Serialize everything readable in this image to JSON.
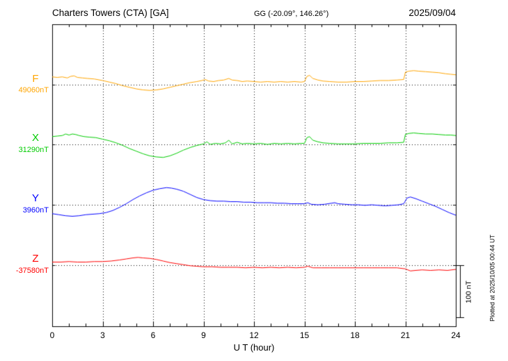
{
  "header": {
    "title": "Charters Towers (CTA)  [GA]",
    "coordinates": "GG (-20.09°, 146.26°)",
    "date": "2025/09/04"
  },
  "chart_data": {
    "type": "line",
    "title": "Charters Towers (CTA)  [GA]",
    "station_code": "CTA",
    "xlabel": "U T (hour)",
    "x_range": [
      0,
      24
    ],
    "x_major_ticks": [
      "0",
      "3",
      "6",
      "9",
      "12",
      "15",
      "18",
      "21",
      "24"
    ],
    "x_minor_tick_step_hours": 1,
    "grid": "dotted vertical lines every 3 hours, dotted horizontal line at each channel baseline",
    "legend_position": "left margin channel labels",
    "scale_bar": {
      "label": "100 nT",
      "nT": 100
    },
    "plotted_at": "Plotted at 2025/10/05 00:44 UT",
    "series": [
      {
        "name": "F",
        "baseline_label": "49060nT",
        "baseline_nT": 49060,
        "color": "#FFA500",
        "points_t_offset_nT": [
          [
            0,
            15
          ],
          [
            0.3,
            14
          ],
          [
            0.6,
            15
          ],
          [
            0.9,
            13
          ],
          [
            1.1,
            16
          ],
          [
            1.3,
            17
          ],
          [
            1.5,
            14
          ],
          [
            1.8,
            13
          ],
          [
            2.1,
            12
          ],
          [
            2.5,
            11
          ],
          [
            3.0,
            8
          ],
          [
            3.4,
            5
          ],
          [
            3.8,
            2
          ],
          [
            4.2,
            -2
          ],
          [
            4.6,
            -5
          ],
          [
            5.0,
            -8
          ],
          [
            5.4,
            -10
          ],
          [
            5.8,
            -11
          ],
          [
            6.2,
            -10
          ],
          [
            6.6,
            -8
          ],
          [
            7.0,
            -5
          ],
          [
            7.4,
            -2
          ],
          [
            7.8,
            1
          ],
          [
            8.2,
            4
          ],
          [
            8.6,
            6
          ],
          [
            8.9,
            8
          ],
          [
            9.1,
            10
          ],
          [
            9.3,
            7
          ],
          [
            9.6,
            6
          ],
          [
            9.9,
            8
          ],
          [
            10.2,
            9
          ],
          [
            10.5,
            12
          ],
          [
            10.7,
            9
          ],
          [
            11.0,
            8
          ],
          [
            11.3,
            6
          ],
          [
            11.6,
            7
          ],
          [
            12.0,
            6
          ],
          [
            12.4,
            5
          ],
          [
            12.8,
            6
          ],
          [
            13.2,
            5
          ],
          [
            13.6,
            6
          ],
          [
            14.0,
            5
          ],
          [
            14.4,
            6
          ],
          [
            14.8,
            5
          ],
          [
            15.0,
            6
          ],
          [
            15.15,
            16
          ],
          [
            15.3,
            18
          ],
          [
            15.5,
            12
          ],
          [
            15.8,
            9
          ],
          [
            16.1,
            7
          ],
          [
            16.5,
            6
          ],
          [
            17.0,
            5
          ],
          [
            17.5,
            5
          ],
          [
            18.0,
            6
          ],
          [
            18.5,
            6
          ],
          [
            19.0,
            7
          ],
          [
            19.5,
            8
          ],
          [
            20.0,
            8
          ],
          [
            20.5,
            9
          ],
          [
            20.9,
            10
          ],
          [
            21.0,
            24
          ],
          [
            21.2,
            26
          ],
          [
            21.5,
            27
          ],
          [
            21.8,
            26
          ],
          [
            22.2,
            25
          ],
          [
            22.6,
            24
          ],
          [
            23.0,
            23
          ],
          [
            23.4,
            21
          ],
          [
            23.7,
            20
          ],
          [
            24,
            19
          ]
        ]
      },
      {
        "name": "X",
        "baseline_label": "31290nT",
        "baseline_nT": 31290,
        "color": "#00CC00",
        "points_t_offset_nT": [
          [
            0,
            15
          ],
          [
            0.3,
            16
          ],
          [
            0.6,
            17
          ],
          [
            0.8,
            20
          ],
          [
            1.0,
            18
          ],
          [
            1.2,
            20
          ],
          [
            1.4,
            19
          ],
          [
            1.6,
            17
          ],
          [
            1.9,
            15
          ],
          [
            2.2,
            14
          ],
          [
            2.6,
            13
          ],
          [
            3.0,
            10
          ],
          [
            3.4,
            7
          ],
          [
            3.8,
            3
          ],
          [
            4.2,
            -2
          ],
          [
            4.6,
            -8
          ],
          [
            5.0,
            -13
          ],
          [
            5.4,
            -18
          ],
          [
            5.8,
            -22
          ],
          [
            6.2,
            -24
          ],
          [
            6.6,
            -25
          ],
          [
            7.0,
            -22
          ],
          [
            7.4,
            -17
          ],
          [
            7.8,
            -11
          ],
          [
            8.2,
            -6
          ],
          [
            8.6,
            -2
          ],
          [
            9.0,
            1
          ],
          [
            9.2,
            5
          ],
          [
            9.4,
            0
          ],
          [
            9.7,
            2
          ],
          [
            10.0,
            1
          ],
          [
            10.3,
            3
          ],
          [
            10.5,
            8
          ],
          [
            10.7,
            1
          ],
          [
            11.0,
            4
          ],
          [
            11.3,
            1
          ],
          [
            11.6,
            2
          ],
          [
            12.0,
            1
          ],
          [
            12.4,
            2
          ],
          [
            12.8,
            0
          ],
          [
            13.2,
            2
          ],
          [
            13.6,
            1
          ],
          [
            14.0,
            2
          ],
          [
            14.4,
            1
          ],
          [
            14.8,
            2
          ],
          [
            15.0,
            2
          ],
          [
            15.15,
            13
          ],
          [
            15.3,
            15
          ],
          [
            15.5,
            8
          ],
          [
            15.8,
            5
          ],
          [
            16.1,
            3
          ],
          [
            16.5,
            2
          ],
          [
            17.0,
            1
          ],
          [
            17.5,
            1
          ],
          [
            18.0,
            1
          ],
          [
            18.5,
            2
          ],
          [
            19.0,
            2
          ],
          [
            19.5,
            2
          ],
          [
            20.0,
            3
          ],
          [
            20.5,
            3
          ],
          [
            20.9,
            4
          ],
          [
            21.0,
            19
          ],
          [
            21.2,
            21
          ],
          [
            21.5,
            22
          ],
          [
            21.8,
            21
          ],
          [
            22.2,
            20
          ],
          [
            22.6,
            20
          ],
          [
            23.0,
            19
          ],
          [
            23.4,
            18
          ],
          [
            23.7,
            18
          ],
          [
            24,
            17
          ]
        ]
      },
      {
        "name": "Y",
        "baseline_label": "3960nT",
        "baseline_nT": 3960,
        "color": "#0000FF",
        "points_t_offset_nT": [
          [
            0,
            -17
          ],
          [
            0.4,
            -19
          ],
          [
            0.8,
            -21
          ],
          [
            1.2,
            -22
          ],
          [
            1.6,
            -21
          ],
          [
            2.0,
            -19
          ],
          [
            2.4,
            -18
          ],
          [
            2.8,
            -17
          ],
          [
            3.2,
            -15
          ],
          [
            3.6,
            -11
          ],
          [
            4.0,
            -5
          ],
          [
            4.4,
            2
          ],
          [
            4.8,
            10
          ],
          [
            5.2,
            17
          ],
          [
            5.6,
            23
          ],
          [
            6.0,
            28
          ],
          [
            6.4,
            31
          ],
          [
            6.8,
            33
          ],
          [
            7.1,
            32
          ],
          [
            7.4,
            30
          ],
          [
            7.8,
            26
          ],
          [
            8.2,
            20
          ],
          [
            8.6,
            14
          ],
          [
            9.0,
            10
          ],
          [
            9.4,
            8
          ],
          [
            9.8,
            7
          ],
          [
            10.2,
            7
          ],
          [
            10.6,
            6
          ],
          [
            11.0,
            6
          ],
          [
            11.4,
            5
          ],
          [
            11.8,
            5
          ],
          [
            12.2,
            4
          ],
          [
            12.6,
            4
          ],
          [
            13.0,
            4
          ],
          [
            13.4,
            3
          ],
          [
            13.8,
            3
          ],
          [
            14.2,
            2
          ],
          [
            14.6,
            2
          ],
          [
            15.0,
            2
          ],
          [
            15.2,
            4
          ],
          [
            15.4,
            1
          ],
          [
            15.8,
            0
          ],
          [
            16.2,
            1
          ],
          [
            16.6,
            3
          ],
          [
            16.8,
            4
          ],
          [
            17.0,
            2
          ],
          [
            17.4,
            1
          ],
          [
            17.8,
            0
          ],
          [
            18.2,
            0
          ],
          [
            18.6,
            -1
          ],
          [
            19.0,
            0
          ],
          [
            19.4,
            -1
          ],
          [
            19.8,
            -2
          ],
          [
            20.2,
            -1
          ],
          [
            20.6,
            0
          ],
          [
            20.9,
            2
          ],
          [
            21.1,
            13
          ],
          [
            21.3,
            15
          ],
          [
            21.6,
            12
          ],
          [
            22.0,
            7
          ],
          [
            22.4,
            2
          ],
          [
            22.8,
            -3
          ],
          [
            23.2,
            -9
          ],
          [
            23.6,
            -15
          ],
          [
            24,
            -20
          ]
        ]
      },
      {
        "name": "Z",
        "baseline_label": "-37580nT",
        "baseline_nT": -37580,
        "color": "#FF0000",
        "points_t_offset_nT": [
          [
            0,
            6
          ],
          [
            0.5,
            6
          ],
          [
            1.0,
            7
          ],
          [
            1.5,
            6
          ],
          [
            2.0,
            6
          ],
          [
            2.5,
            7
          ],
          [
            3.0,
            7
          ],
          [
            3.5,
            8
          ],
          [
            4.0,
            10
          ],
          [
            4.4,
            12
          ],
          [
            4.8,
            14
          ],
          [
            5.1,
            15
          ],
          [
            5.4,
            14
          ],
          [
            5.8,
            13
          ],
          [
            6.2,
            11
          ],
          [
            6.6,
            8
          ],
          [
            7.0,
            5
          ],
          [
            7.4,
            3
          ],
          [
            7.8,
            1
          ],
          [
            8.2,
            -1
          ],
          [
            8.6,
            -2
          ],
          [
            9.0,
            -3
          ],
          [
            9.5,
            -3
          ],
          [
            10.0,
            -4
          ],
          [
            10.5,
            -4
          ],
          [
            11.0,
            -4
          ],
          [
            11.5,
            -5
          ],
          [
            12.0,
            -4
          ],
          [
            12.5,
            -5
          ],
          [
            13.0,
            -4
          ],
          [
            13.5,
            -5
          ],
          [
            14.0,
            -4
          ],
          [
            14.5,
            -5
          ],
          [
            15.0,
            -4
          ],
          [
            15.2,
            -2
          ],
          [
            15.5,
            -5
          ],
          [
            16.0,
            -5
          ],
          [
            16.5,
            -5
          ],
          [
            17.0,
            -5
          ],
          [
            17.5,
            -5
          ],
          [
            18.0,
            -5
          ],
          [
            18.5,
            -5
          ],
          [
            19.0,
            -5
          ],
          [
            19.5,
            -5
          ],
          [
            20.0,
            -5
          ],
          [
            20.5,
            -5
          ],
          [
            21.0,
            -7
          ],
          [
            21.3,
            -11
          ],
          [
            21.6,
            -10
          ],
          [
            22.0,
            -9
          ],
          [
            22.5,
            -10
          ],
          [
            23.0,
            -9
          ],
          [
            23.5,
            -10
          ],
          [
            24,
            -8
          ]
        ]
      }
    ]
  }
}
